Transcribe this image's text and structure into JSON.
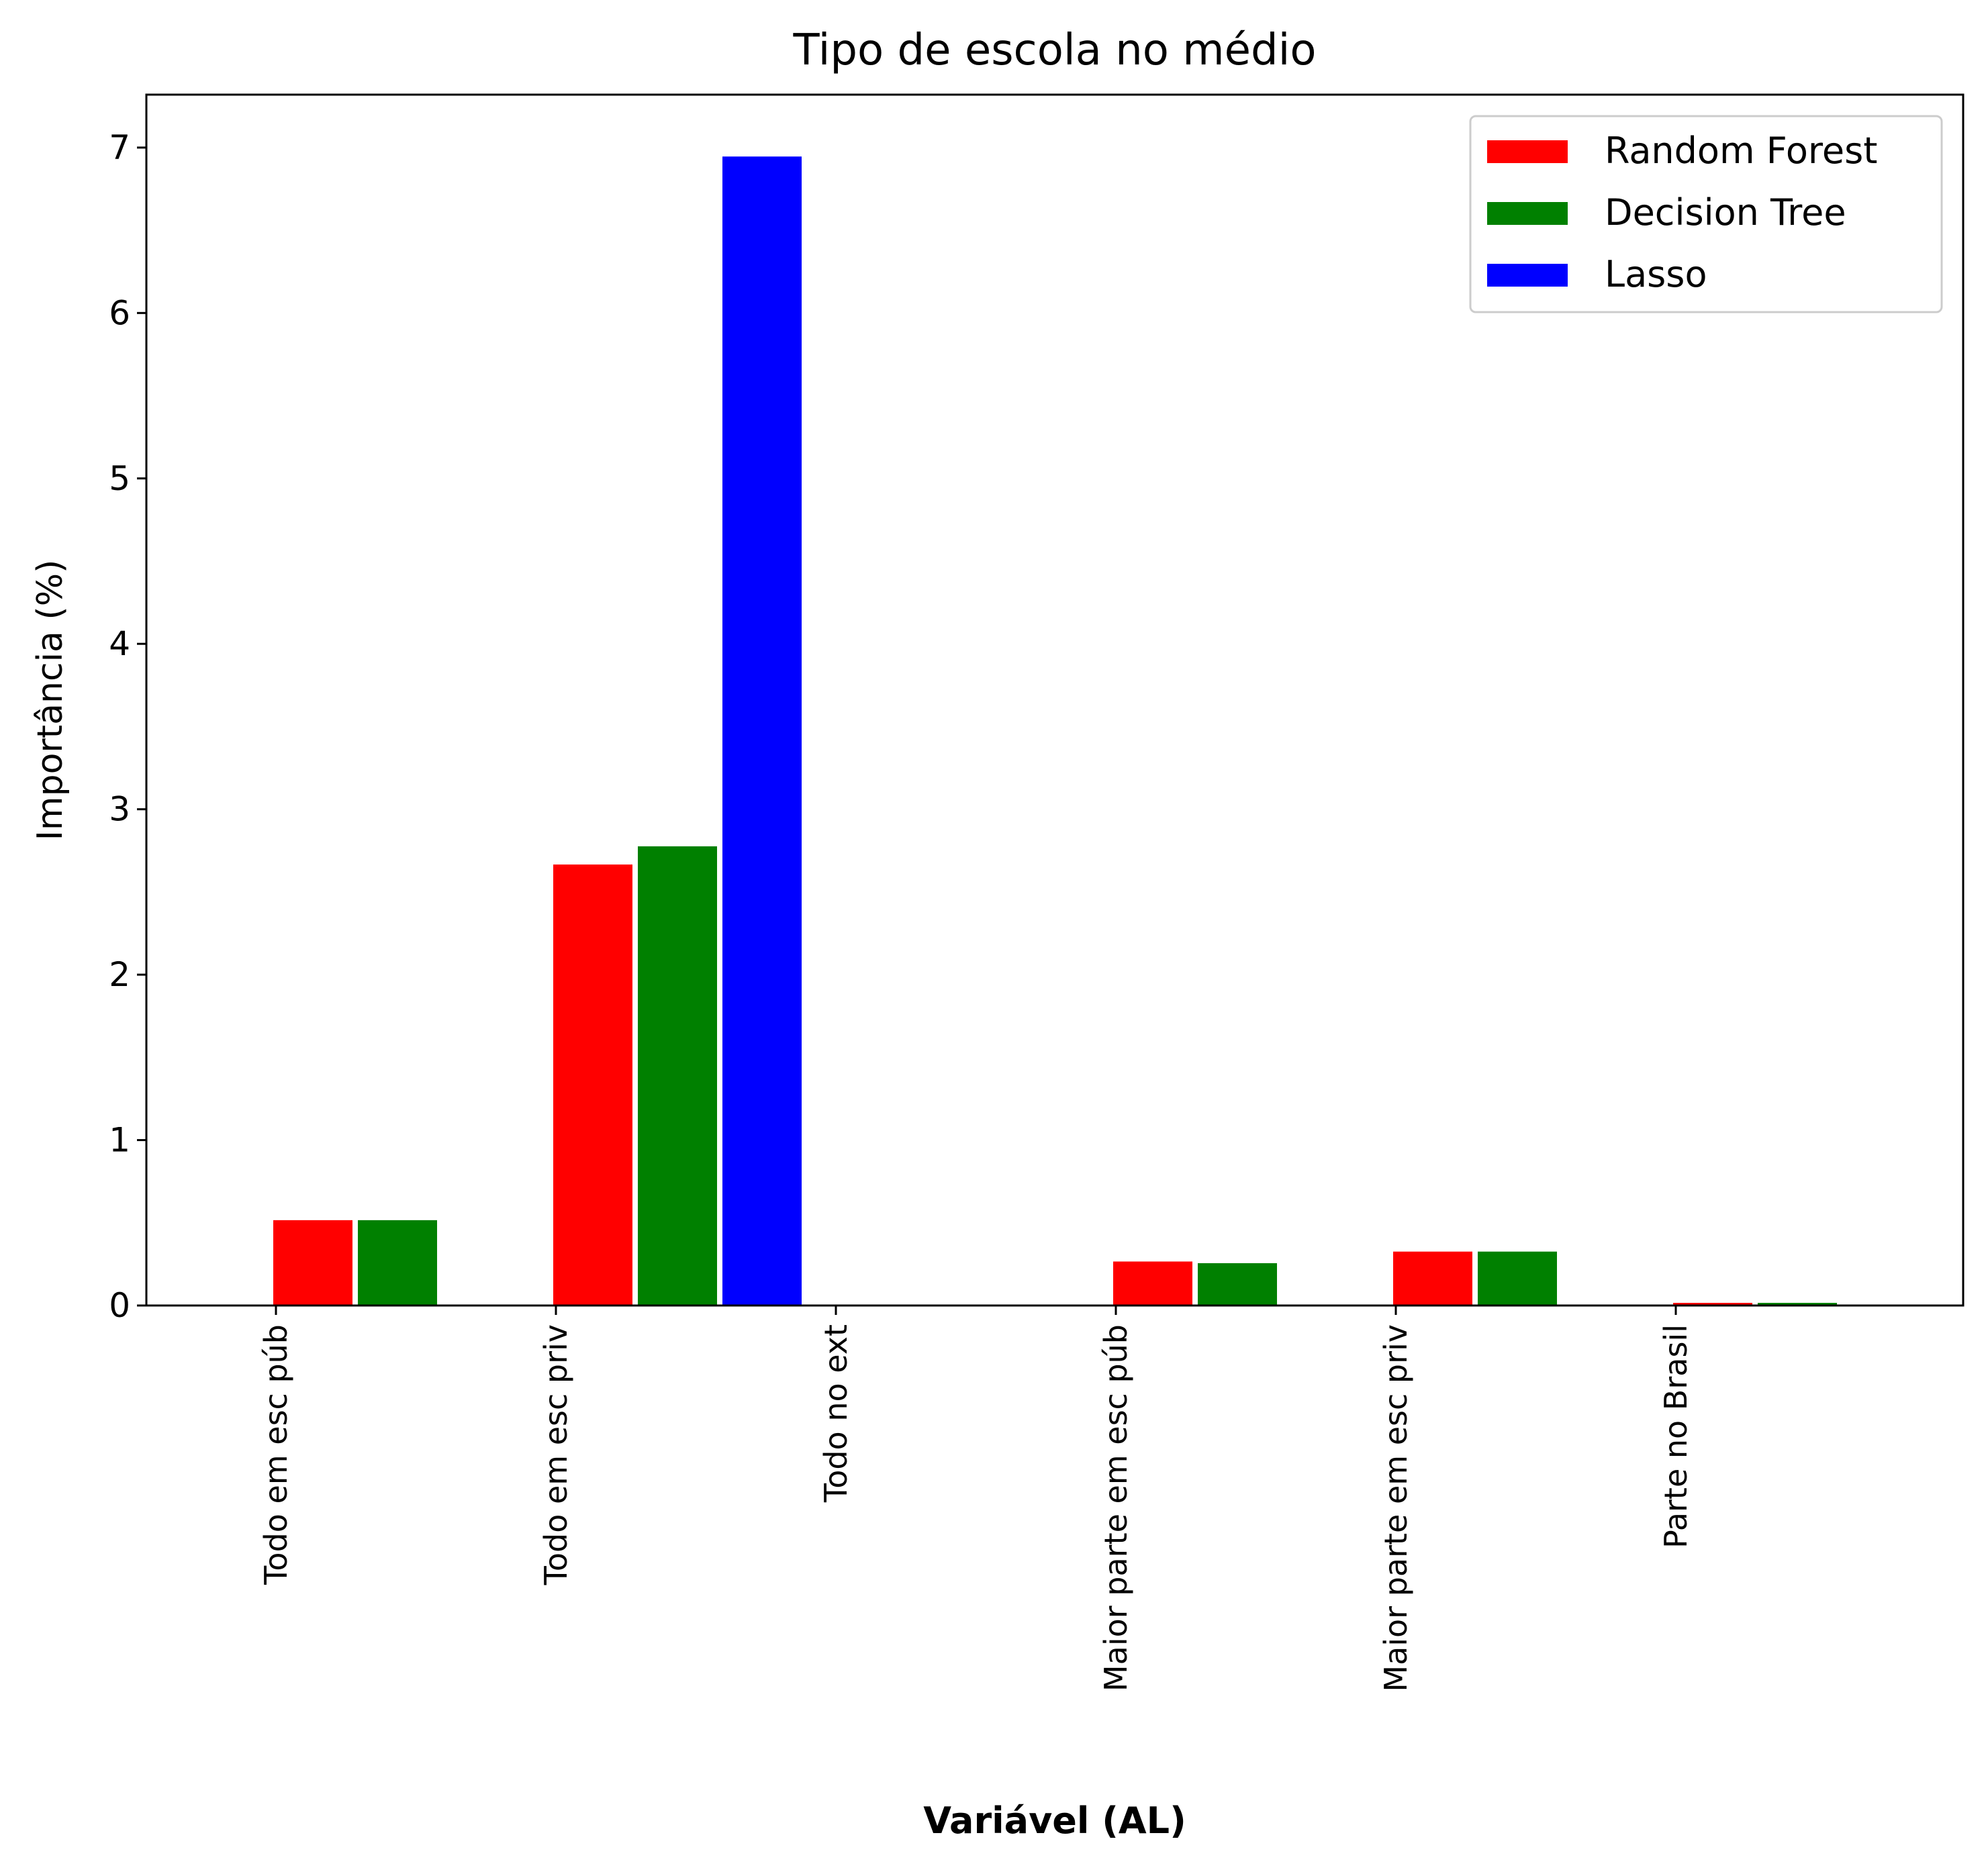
{
  "chart_data": {
    "type": "bar",
    "title": "Tipo de escola no médio",
    "xlabel": "Variável (AL)",
    "ylabel": "Importância (%)",
    "categories": [
      "Todo em esc púb",
      "Todo em esc priv",
      "Todo no ext",
      "Maior parte em esc púb",
      "Maior parte em esc priv",
      "Parte no Brasil"
    ],
    "series": [
      {
        "name": "Random Forest",
        "color": "#ff0000",
        "values": [
          0.52,
          2.67,
          0.0,
          0.27,
          0.33,
          0.02
        ]
      },
      {
        "name": "Decision Tree",
        "color": "#008000",
        "values": [
          0.52,
          2.78,
          0.0,
          0.26,
          0.33,
          0.02
        ]
      },
      {
        "name": "Lasso",
        "color": "#0000ff",
        "values": [
          0.0,
          6.95,
          0.0,
          0.0,
          0.0,
          0.0
        ]
      }
    ],
    "ylim": [
      0,
      7.32
    ],
    "yticks": [
      "0",
      "1",
      "2",
      "3",
      "4",
      "5",
      "6",
      "7"
    ],
    "legend_position": "top-right",
    "grid": false
  }
}
